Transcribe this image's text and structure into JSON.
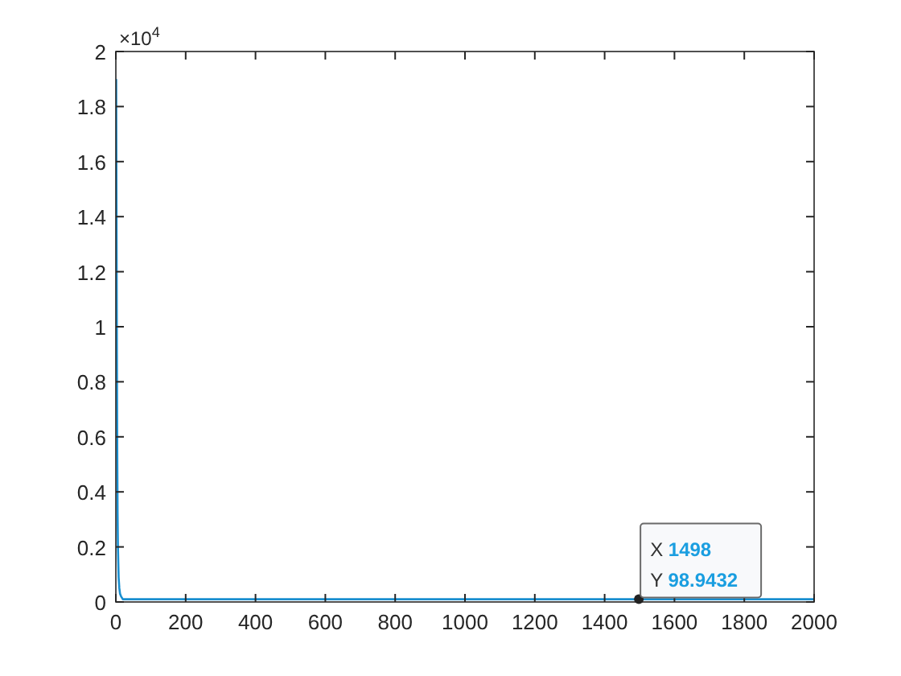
{
  "chart_data": {
    "type": "line",
    "x": [
      1,
      2,
      3,
      4,
      5,
      6,
      8,
      10,
      12,
      15,
      20,
      50,
      200,
      1000,
      1498,
      2000
    ],
    "series": [
      {
        "color": "#1a8fd0",
        "values": [
          1.9,
          1.4,
          0.9,
          0.55,
          0.32,
          0.2,
          0.09,
          0.05,
          0.03,
          0.02,
          0.01,
          0.01,
          0.01,
          0.01,
          0.01,
          0.01
        ]
      }
    ],
    "xlim": [
      0,
      2000
    ],
    "ylim": [
      0,
      2
    ],
    "xticks": [
      0,
      200,
      400,
      600,
      800,
      1000,
      1200,
      1400,
      1600,
      1800,
      2000
    ],
    "yticks": [
      0,
      0.2,
      0.4,
      0.6,
      0.8,
      1,
      1.2,
      1.4,
      1.6,
      1.8,
      2
    ],
    "annotations": [
      "×10$^{4}$",
      {
        "text": "X 1498\nY 98.9432",
        "x": 1498,
        "y": 0.01
      }
    ],
    "grid": false,
    "marker": "none",
    "line_style": "solid"
  }
}
